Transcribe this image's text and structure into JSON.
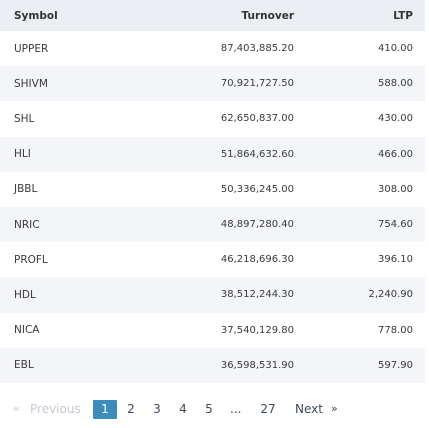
{
  "table": {
    "headers": {
      "symbol": "Symbol",
      "turnover": "Turnover",
      "ltp": "LTP"
    },
    "rows": [
      {
        "symbol": "UPPER",
        "turnover": "87,403,885.20",
        "ltp": "410.00"
      },
      {
        "symbol": "SHIVM",
        "turnover": "70,921,727.50",
        "ltp": "588.00"
      },
      {
        "symbol": "SHL",
        "turnover": "62,650,837.00",
        "ltp": "430.00"
      },
      {
        "symbol": "HLI",
        "turnover": "51,864,632.60",
        "ltp": "466.00"
      },
      {
        "symbol": "JBBL",
        "turnover": "50,336,245.00",
        "ltp": "308.00"
      },
      {
        "symbol": "NRIC",
        "turnover": "48,897,280.40",
        "ltp": "754.60"
      },
      {
        "symbol": "PROFL",
        "turnover": "46,218,696.30",
        "ltp": "396.10"
      },
      {
        "symbol": "HDL",
        "turnover": "38,512,244.30",
        "ltp": "2,240.90"
      },
      {
        "symbol": "NICA",
        "turnover": "37,540,129.80",
        "ltp": "778.00"
      },
      {
        "symbol": "EBL",
        "turnover": "36,598,531.90",
        "ltp": "597.90"
      }
    ]
  },
  "pagination": {
    "prev_arrow": "«",
    "prev_label": "Previous",
    "pages": [
      "1",
      "2",
      "3",
      "4",
      "5"
    ],
    "current_page": "1",
    "ellipsis": "...",
    "last_page": "27",
    "next_label": "Next",
    "next_arrow": "»",
    "active_color": "#3c8dbc"
  }
}
